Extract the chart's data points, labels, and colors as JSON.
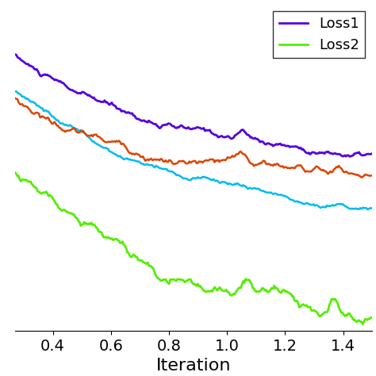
{
  "title": "",
  "xlabel": "Iteration",
  "ylabel": "",
  "xlim": [
    0.27,
    1.5
  ],
  "ylim_auto": true,
  "x_ticks": [
    0.4,
    0.6,
    0.8,
    1.0,
    1.2,
    1.4
  ],
  "legend_labels": [
    "Loss1",
    "Loss2"
  ],
  "line_colors": {
    "blue_purple": "#5500dd",
    "orange_red": "#dd4400",
    "cyan": "#00bbee",
    "green": "#55ee00"
  },
  "line_widths": {
    "blue_purple": 2.0,
    "orange_red": 1.8,
    "cyan": 1.8,
    "green": 2.0
  },
  "n_points": 300,
  "background_color": "#ffffff",
  "xlabel_fontsize": 16,
  "tick_fontsize": 14,
  "legend_fontsize": 13
}
